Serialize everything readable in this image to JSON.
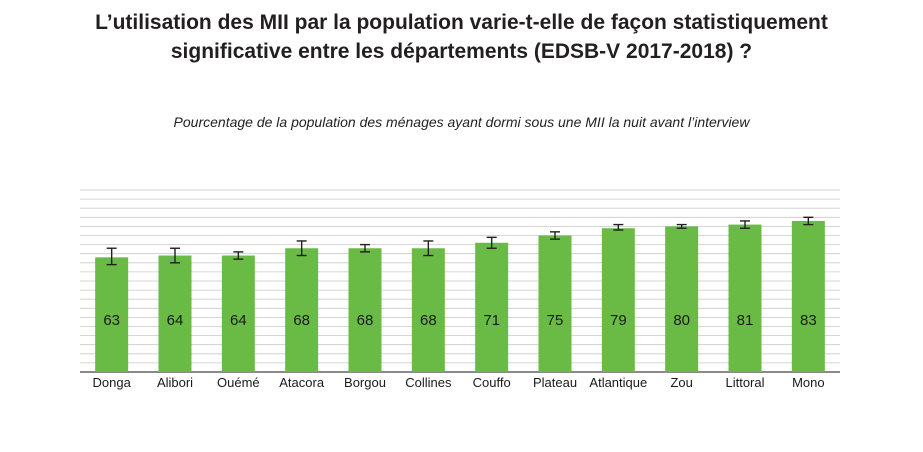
{
  "title_line1": "L’utilisation des MII par la population varie-t-elle de façon statistiquement",
  "title_line2": "significative entre les départements (EDSB-V 2017-2018) ?",
  "subtitle": "Pourcentage de la population des ménages ayant dormi sous une MII la nuit avant l’interview",
  "colors": {
    "bar": "#6abb45",
    "grid": "#c9c9c9",
    "axis": "#444444",
    "errorbar": "#231f20"
  },
  "chart_data": {
    "type": "bar",
    "categories": [
      "Donga",
      "Alibori",
      "Ouémé",
      "Atacora",
      "Borgou",
      "Collines",
      "Couffo",
      "Plateau",
      "Atlantique",
      "Zou",
      "Littoral",
      "Mono"
    ],
    "values": [
      63,
      64,
      64,
      68,
      68,
      68,
      71,
      75,
      79,
      80,
      81,
      83
    ],
    "error_low": [
      59,
      60,
      62,
      64,
      66,
      64,
      68,
      73,
      78,
      79,
      79,
      81
    ],
    "error_high": [
      68,
      68,
      66,
      72,
      70,
      72,
      74,
      77,
      81,
      81,
      83,
      85
    ],
    "ylim": [
      0,
      100
    ],
    "grid": true,
    "y_tick_labels_shown": false
  }
}
